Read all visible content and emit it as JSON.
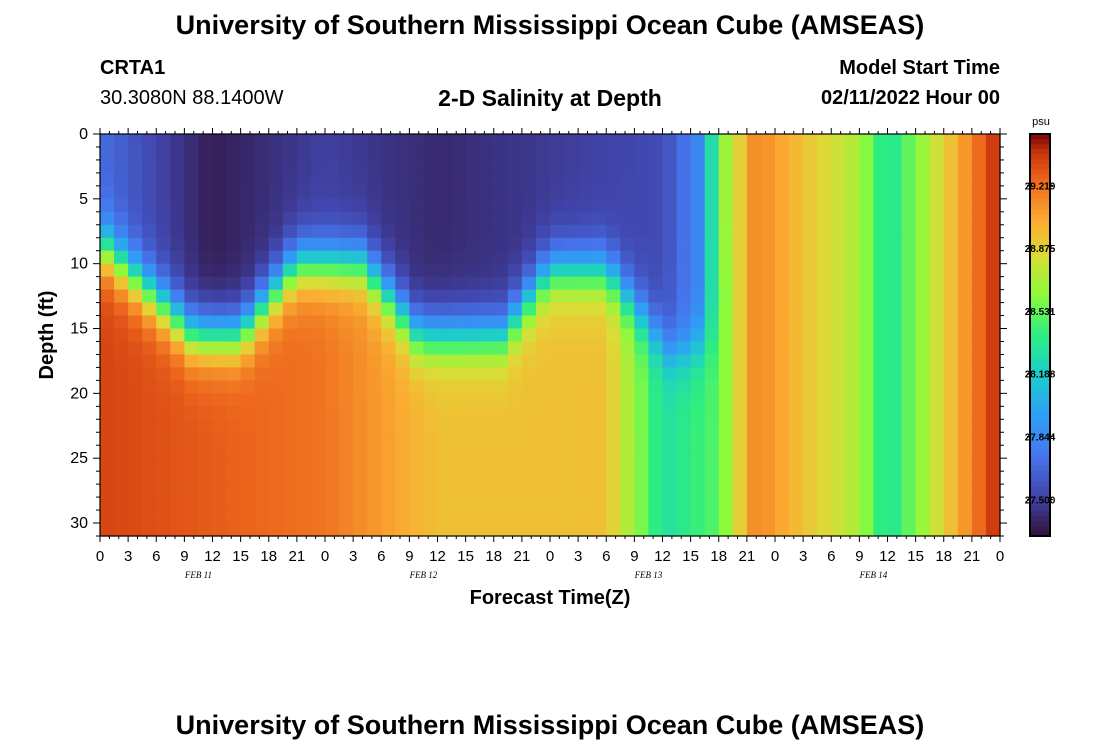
{
  "header": {
    "title": "University of Southern Mississippi Ocean Cube (AMSEAS)",
    "station_id": "CRTA1",
    "coordinates": "30.3080N  88.1400W",
    "subtitle": "2-D Salinity at Depth",
    "model_start_label": "Model Start Time",
    "model_start_value": "02/11/2022 Hour 00"
  },
  "footer": {
    "title": "University of Southern Mississippi Ocean Cube (AMSEAS)"
  },
  "chart_data": {
    "type": "heatmap",
    "ylabel": "Depth (ft)",
    "xlabel": "Forecast Time(Z)",
    "y_ticks": [
      "0",
      "5",
      "10",
      "15",
      "20",
      "25",
      "30"
    ],
    "y_range": [
      0,
      31
    ],
    "x_range_hours": [
      0,
      96
    ],
    "x_tick_labels": [
      "0",
      "3",
      "6",
      "9",
      "12",
      "15",
      "18",
      "21",
      "0",
      "3",
      "6",
      "9",
      "12",
      "15",
      "18",
      "21",
      "0",
      "3",
      "6",
      "9",
      "12",
      "15",
      "18",
      "21",
      "0",
      "3",
      "6",
      "9",
      "12",
      "15",
      "18",
      "21",
      "0"
    ],
    "date_labels": [
      {
        "label": "FEB 11",
        "hour": 10.5
      },
      {
        "label": "FEB 12",
        "hour": 34.5
      },
      {
        "label": "FEB 13",
        "hour": 58.5
      },
      {
        "label": "FEB 14",
        "hour": 82.5
      }
    ],
    "colorbar": {
      "unit": "psu",
      "min": 27.3,
      "max": 29.5,
      "tick_labels": [
        "29.219",
        "28.875",
        "28.531",
        "28.188",
        "27.844",
        "27.500"
      ],
      "tick_values": [
        29.219,
        28.875,
        28.531,
        28.188,
        27.844,
        27.5
      ]
    },
    "value_range": [
      27.3,
      29.5
    ],
    "surface_salinity_psu": [
      {
        "hour": 0,
        "value": 27.7
      },
      {
        "hour": 12,
        "value": 27.35
      },
      {
        "hour": 24,
        "value": 27.5
      },
      {
        "hour": 36,
        "value": 27.4
      },
      {
        "hour": 60,
        "value": 27.55
      },
      {
        "hour": 64,
        "value": 27.85
      },
      {
        "hour": 66,
        "value": 28.55
      },
      {
        "hour": 70,
        "value": 29.15
      },
      {
        "hour": 81,
        "value": 28.7
      },
      {
        "hour": 84,
        "value": 28.3
      },
      {
        "hour": 96,
        "value": 29.45
      }
    ],
    "bottom_salinity_psu": [
      {
        "hour": 0,
        "value": 29.35
      },
      {
        "hour": 24,
        "value": 29.2
      },
      {
        "hour": 36,
        "value": 28.95
      },
      {
        "hour": 54,
        "value": 28.95
      },
      {
        "hour": 58,
        "value": 28.55
      },
      {
        "hour": 60,
        "value": 28.3
      },
      {
        "hour": 66,
        "value": 28.5
      },
      {
        "hour": 70,
        "value": 29.15
      },
      {
        "hour": 81,
        "value": 28.7
      },
      {
        "hour": 84,
        "value": 28.3
      },
      {
        "hour": 96,
        "value": 29.45
      }
    ],
    "halocline_depth_ft": [
      {
        "hour": 0,
        "depth": 8.5
      },
      {
        "hour": 10,
        "depth": 15.5
      },
      {
        "hour": 15,
        "depth": 15.5
      },
      {
        "hour": 21,
        "depth": 10
      },
      {
        "hour": 28,
        "depth": 10
      },
      {
        "hour": 34,
        "depth": 15.5
      },
      {
        "hour": 43,
        "depth": 15.5
      },
      {
        "hour": 48,
        "depth": 10.5
      },
      {
        "hour": 54,
        "depth": 10.5
      },
      {
        "hour": 61,
        "depth": 17
      },
      {
        "hour": 66,
        "depth": 16
      },
      {
        "hour": 68,
        "depth": 0
      },
      {
        "hour": 96,
        "depth": 0
      }
    ]
  }
}
